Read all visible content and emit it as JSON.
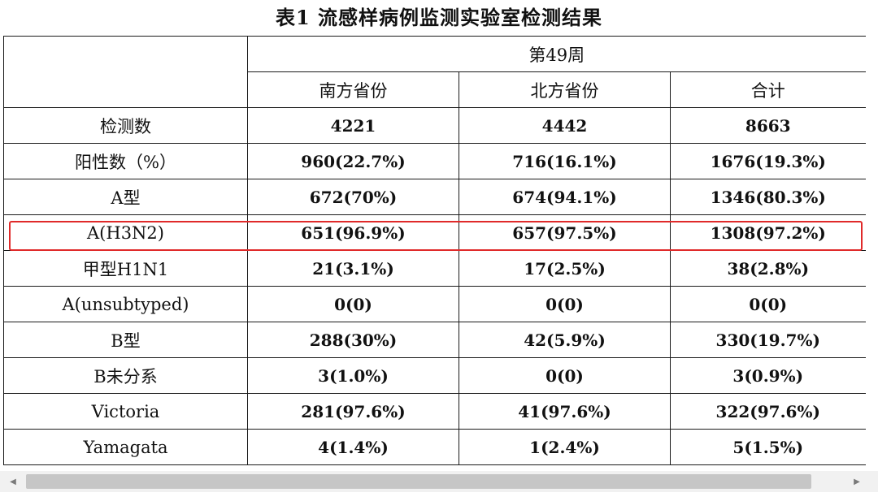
{
  "title": "表1  流感样病例监测实验室检测结果",
  "table": {
    "week_header": "第49周",
    "column_headers": [
      "南方省份",
      "北方省份",
      "合计"
    ],
    "rows": [
      {
        "label": "检测数",
        "values": [
          "4221",
          "4442",
          "8663"
        ]
      },
      {
        "label": "阳性数（%）",
        "values": [
          "960(22.7%)",
          "716(16.1%)",
          "1676(19.3%)"
        ]
      },
      {
        "label": "A型",
        "values": [
          "672(70%)",
          "674(94.1%)",
          "1346(80.3%)"
        ]
      },
      {
        "label": "A(H3N2)",
        "values": [
          "651(96.9%)",
          "657(97.5%)",
          "1308(97.2%)"
        ]
      },
      {
        "label": "甲型H1N1",
        "values": [
          "21(3.1%)",
          "17(2.5%)",
          "38(2.8%)"
        ]
      },
      {
        "label": "A(unsubtyped)",
        "values": [
          "0(0)",
          "0(0)",
          "0(0)"
        ]
      },
      {
        "label": "B型",
        "values": [
          "288(30%)",
          "42(5.9%)",
          "330(19.7%)"
        ]
      },
      {
        "label": "B未分系",
        "values": [
          "3(1.0%)",
          "0(0)",
          "3(0.9%)"
        ]
      },
      {
        "label": "Victoria",
        "values": [
          "281(97.6%)",
          "41(97.6%)",
          "322(97.6%)"
        ]
      },
      {
        "label": "Yamagata",
        "values": [
          "4(1.4%)",
          "1(2.4%)",
          "5(1.5%)"
        ]
      }
    ]
  },
  "highlight": {
    "row": "A(H3N2)",
    "color": "#e02a2a"
  },
  "scrollbar": {
    "left_icon": "arrow-left-icon",
    "right_icon": "arrow-right-icon"
  }
}
